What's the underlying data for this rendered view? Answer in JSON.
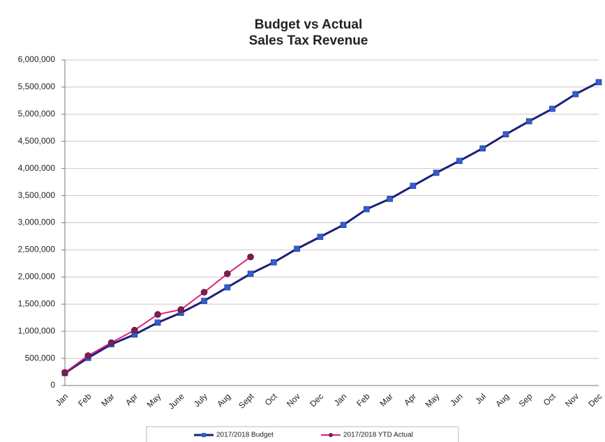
{
  "chart_data": {
    "type": "line",
    "title": "Budget vs Actual",
    "subtitle": "Sales Tax Revenue",
    "categories": [
      "Jan",
      "Feb",
      "Mar",
      "Apr",
      "May",
      "June",
      "July",
      "Aug",
      "Sept",
      "Oct",
      "Nov",
      "Dec",
      "Jan",
      "Feb",
      "Mar",
      "Apr",
      "May",
      "Jun",
      "Jul",
      "Aug",
      "Sep",
      "Oct",
      "Nov",
      "Dec"
    ],
    "series": [
      {
        "name": "2017/2018 Budget",
        "color": "#1b1f7a",
        "marker_color": "#2f5fd0",
        "marker": "square",
        "values": [
          230000,
          510000,
          760000,
          940000,
          1160000,
          1340000,
          1560000,
          1810000,
          2060000,
          2270000,
          2520000,
          2740000,
          2960000,
          3250000,
          3440000,
          3680000,
          3920000,
          4140000,
          4370000,
          4630000,
          4870000,
          5100000,
          5370000,
          5590000
        ]
      },
      {
        "name": "2017/2018 YTD Actual",
        "color": "#e0207a",
        "marker_color": "#7a1f4f",
        "marker": "circle",
        "values": [
          240000,
          550000,
          790000,
          1020000,
          1310000,
          1400000,
          1720000,
          2060000,
          2370000,
          null,
          null,
          null,
          null,
          null,
          null,
          null,
          null,
          null,
          null,
          null,
          null,
          null,
          null,
          null
        ]
      }
    ],
    "ylim": [
      0,
      6000000
    ],
    "yticks": [
      0,
      {
        "value": 500000,
        "label": "500,000"
      },
      {
        "value": 1000000,
        "label": "1,000,000"
      },
      {
        "value": 1500000,
        "label": "1,500,000"
      },
      {
        "value": 2000000,
        "label": "2,000,000"
      },
      {
        "value": 2500000,
        "label": "2,500,000"
      },
      {
        "value": 3000000,
        "label": "3,000,000"
      },
      {
        "value": 3500000,
        "label": "3,500,000"
      },
      {
        "value": 4000000,
        "label": "4,000,000"
      },
      {
        "value": 4500000,
        "label": "4,500,000"
      },
      {
        "value": 5000000,
        "label": "5,000,000"
      },
      {
        "value": 5500000,
        "label": "5,500,000"
      },
      {
        "value": 6000000,
        "label": "6,000,000"
      }
    ],
    "grid": true,
    "legend": "bottom"
  }
}
